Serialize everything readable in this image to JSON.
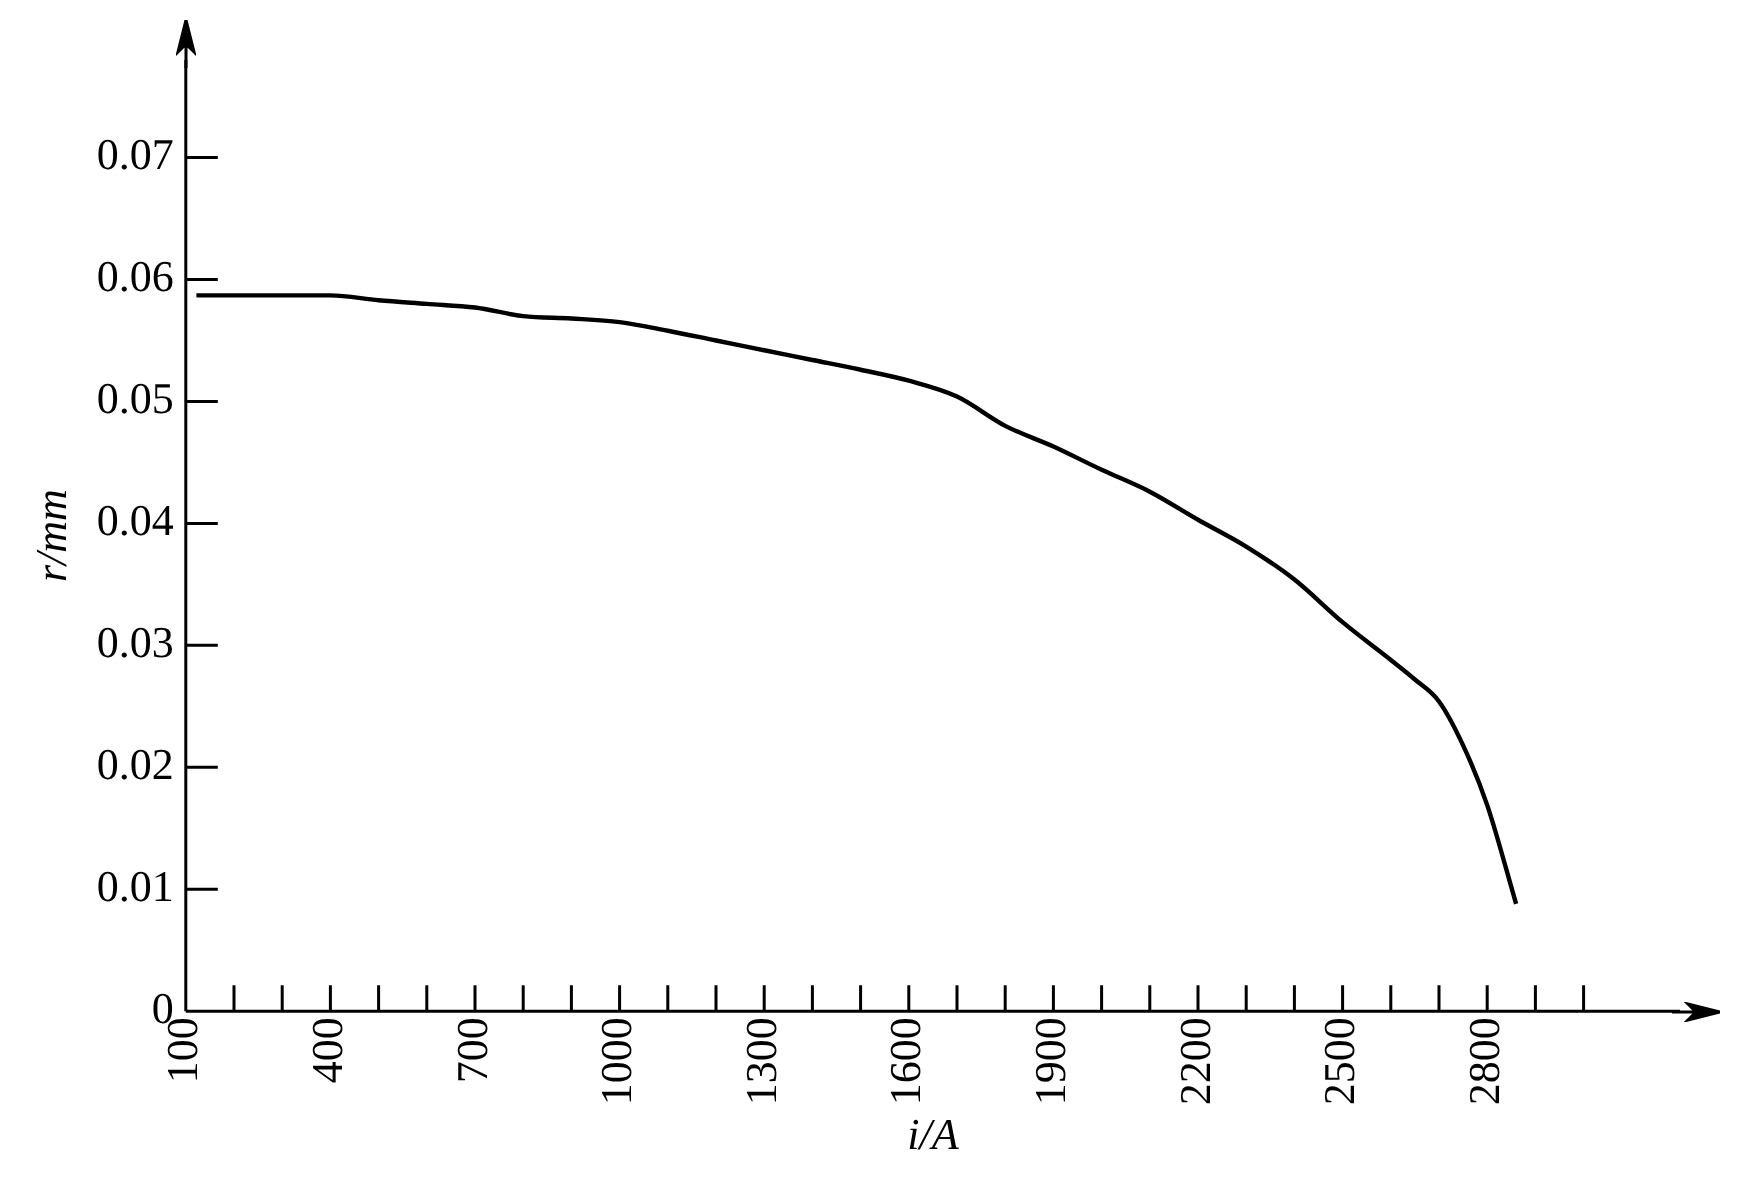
{
  "chart_data": {
    "type": "line",
    "xlabel": "i/A",
    "ylabel": "r/mm",
    "x": [
      122,
      200,
      300,
      400,
      500,
      600,
      700,
      800,
      900,
      1000,
      1100,
      1200,
      1300,
      1400,
      1500,
      1600,
      1700,
      1800,
      1900,
      2000,
      2100,
      2200,
      2300,
      2400,
      2500,
      2600,
      2650,
      2700,
      2750,
      2800,
      2860
    ],
    "series": [
      {
        "color": "#000000",
        "values": [
          0.0587,
          0.0587,
          0.0587,
          0.0587,
          0.0583,
          0.058,
          0.0577,
          0.057,
          0.0568,
          0.0565,
          0.0558,
          0.055,
          0.0542,
          0.0534,
          0.0526,
          0.0517,
          0.0504,
          0.048,
          0.0463,
          0.0444,
          0.0426,
          0.0403,
          0.0381,
          0.0354,
          0.0319,
          0.0288,
          0.0272,
          0.0254,
          0.0218,
          0.0169,
          0.0088
        ]
      }
    ],
    "xlim": [
      100,
      3200
    ],
    "xticks": [
      100,
      {
        "value": 200,
        "label": null
      },
      {
        "value": 300,
        "label": null
      },
      400,
      {
        "value": 500,
        "label": null
      },
      {
        "value": 600,
        "label": null
      },
      700,
      {
        "value": 800,
        "label": null
      },
      {
        "value": 900,
        "label": null
      },
      1000,
      {
        "value": 1100,
        "label": null
      },
      {
        "value": 1200,
        "label": null
      },
      1300,
      {
        "value": 1400,
        "label": null
      },
      {
        "value": 1500,
        "label": null
      },
      1600,
      {
        "value": 1700,
        "label": null
      },
      {
        "value": 1800,
        "label": null
      },
      1900,
      {
        "value": 2000,
        "label": null
      },
      {
        "value": 2100,
        "label": null
      },
      2200,
      {
        "value": 2300,
        "label": null
      },
      {
        "value": 2400,
        "label": null
      },
      2500,
      {
        "value": 2600,
        "label": null
      },
      {
        "value": 2700,
        "label": null
      },
      2800,
      {
        "value": 2900,
        "label": null
      },
      {
        "value": 3000,
        "label": null
      }
    ],
    "ylim": [
      0,
      0.078
    ],
    "yticks": [
      0,
      0.01,
      0.02,
      0.03,
      0.04,
      0.05,
      0.06,
      0.07
    ],
    "grid": false,
    "legend": false,
    "marker": "none",
    "line_style": "solid"
  }
}
